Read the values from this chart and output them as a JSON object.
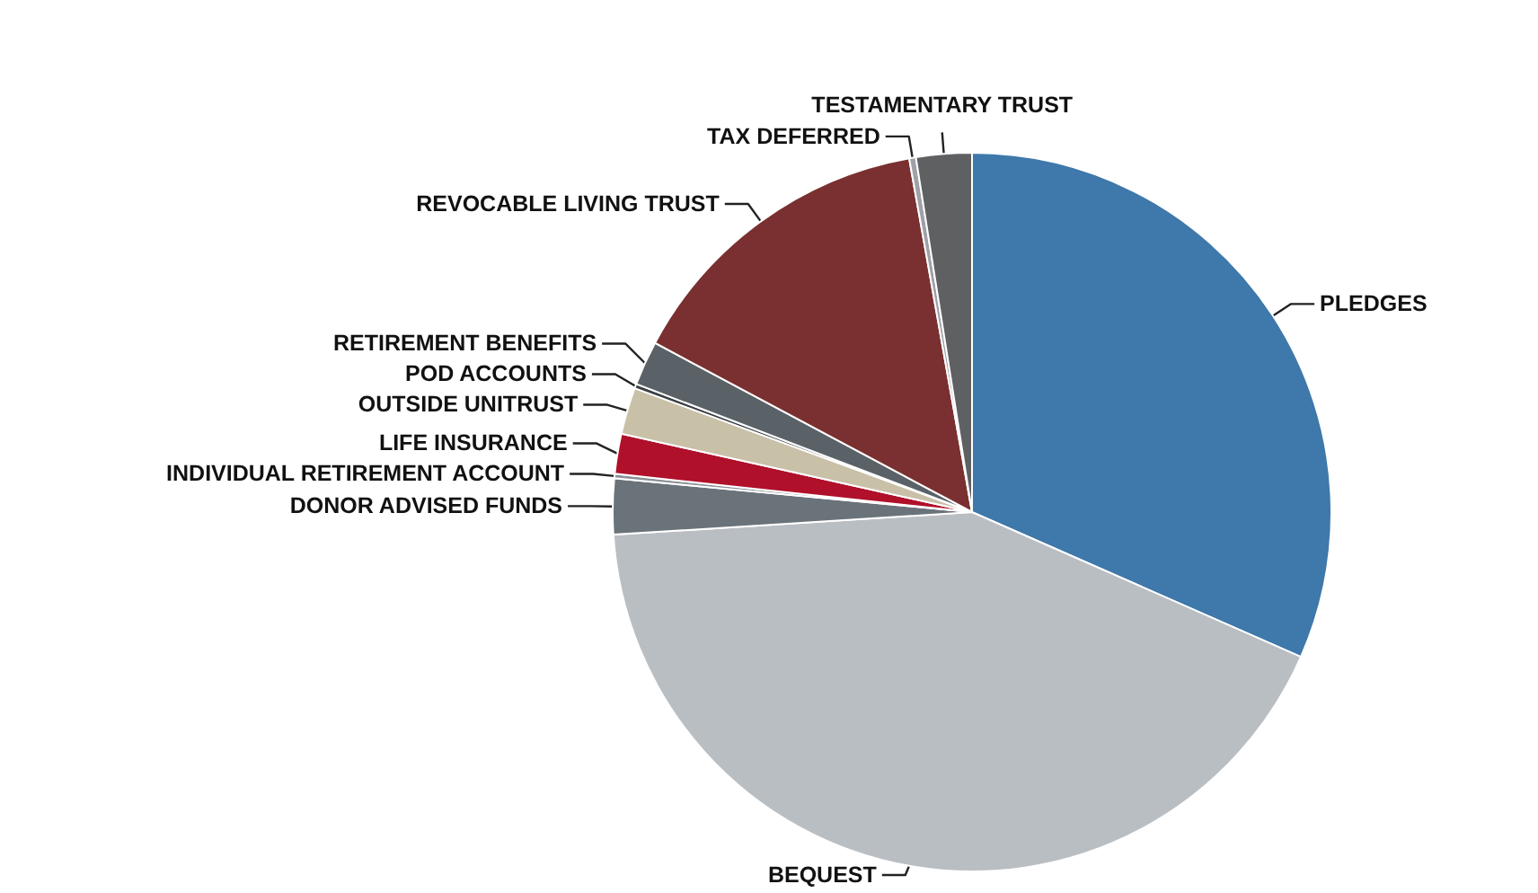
{
  "chart_data": {
    "type": "pie",
    "categories": [
      "PLEDGES",
      "BEQUEST",
      "DONOR ADVISED FUNDS",
      "INDIVIDUAL RETIREMENT ACCOUNT",
      "LIFE INSURANCE",
      "OUTSIDE UNITRUST",
      "POD ACCOUNTS",
      "RETIREMENT BENEFITS",
      "REVOCABLE LIVING TRUST",
      "TAX DEFERRED",
      "TESTAMENTARY TRUST"
    ],
    "values": [
      31.6,
      42.4,
      2.5,
      0.2,
      1.8,
      2.1,
      0.2,
      2.0,
      14.4,
      0.3,
      2.5
    ],
    "colors": [
      "#3f78aa",
      "#b9bec3",
      "#6a737a",
      "#8a9096",
      "#b0102a",
      "#c9c0a8",
      "#3a3f44",
      "#5a6268",
      "#7a3030",
      "#a0a0a8",
      "#5f6062"
    ]
  }
}
